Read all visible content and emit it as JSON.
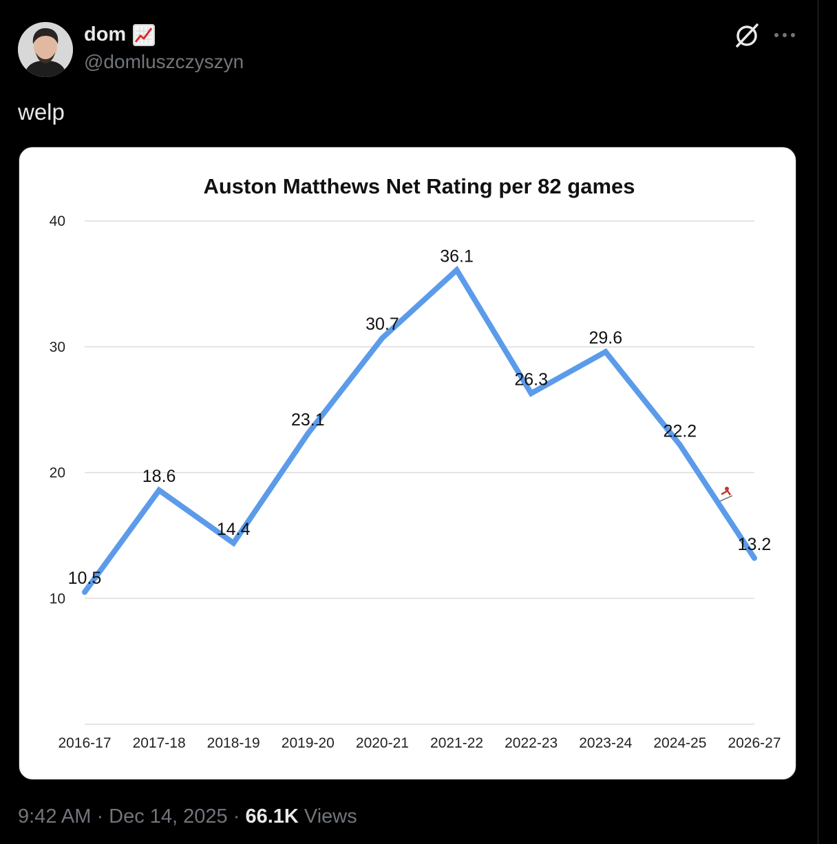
{
  "tweet": {
    "author": {
      "display_name": "dom",
      "handle": "@domluszczyszyn",
      "badge_icon": "chart-increasing-emoji-icon"
    },
    "text": "welp",
    "timestamp": "9:42 AM · Dec 14, 2025",
    "separator": " · ",
    "views_count": "66.1K",
    "views_label": "Views",
    "header_icons": [
      "grok-icon",
      "more-icon"
    ]
  },
  "chart_data": {
    "type": "line",
    "title": "Auston Matthews Net Rating per 82 games",
    "categories": [
      "2016-17",
      "2017-18",
      "2018-19",
      "2019-20",
      "2020-21",
      "2021-22",
      "2022-23",
      "2023-24",
      "2024-25",
      "2026-27"
    ],
    "series": [
      {
        "values": [
          10.5,
          18.6,
          14.4,
          23.1,
          30.7,
          36.1,
          26.3,
          29.6,
          22.2,
          13.2
        ]
      }
    ],
    "data_labels": [
      "10.5",
      "18.6",
      "14.4",
      "23.1",
      "30.7",
      "36.1",
      "26.3",
      "29.6",
      "22.2",
      "13.2"
    ],
    "yticks": [
      {
        "value": 10,
        "label": "10"
      },
      {
        "value": 20,
        "label": "20"
      },
      {
        "value": 30,
        "label": "30"
      },
      {
        "value": 40,
        "label": "40"
      }
    ],
    "ylim": [
      0,
      40
    ],
    "grid": true,
    "line_color": "#5b9bea",
    "annotation_icon": "skier-emoji-icon"
  }
}
